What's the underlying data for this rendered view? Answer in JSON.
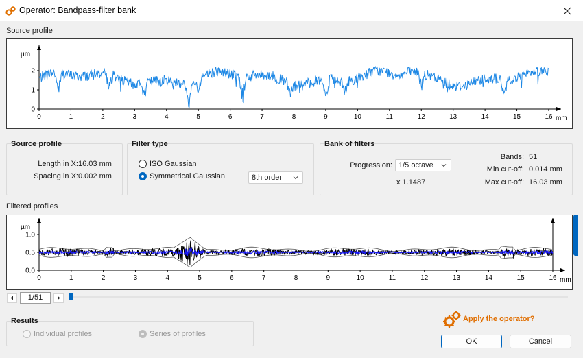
{
  "window": {
    "title": "Operator: Bandpass-filter bank",
    "title_icon": "gears-icon",
    "close_icon": "close-icon"
  },
  "source_plot": {
    "label": "Source profile",
    "y_unit": "µm",
    "x_unit": "mm",
    "x_ticks": [
      "0",
      "1",
      "2",
      "3",
      "4",
      "5",
      "6",
      "7",
      "8",
      "9",
      "10",
      "11",
      "12",
      "13",
      "14",
      "15",
      "16"
    ],
    "y_ticks": [
      "0",
      "1",
      "2"
    ],
    "series_color": "#1e88e5"
  },
  "source_info": {
    "title": "Source profile",
    "length_label": "Length in X:",
    "length_value": "16.03 mm",
    "spacing_label": "Spacing in X:",
    "spacing_value": "0.002 mm"
  },
  "filter_type": {
    "title": "Filter type",
    "options": [
      "ISO Gaussian",
      "Symmetrical Gaussian"
    ],
    "selected": "Symmetrical Gaussian",
    "order": "8th order"
  },
  "bank": {
    "title": "Bank of filters",
    "progression_label": "Progression:",
    "progression_value": "1/5 octave",
    "ratio": "x 1.1487",
    "bands_label": "Bands:",
    "bands_value": "51",
    "min_cutoff_label": "Min cut-off:",
    "min_cutoff_value": "0.014 mm",
    "max_cutoff_label": "Max cut-off:",
    "max_cutoff_value": "16.03 mm"
  },
  "filtered_plot": {
    "label": "Filtered profiles",
    "y_unit": "µm",
    "x_unit": "mm",
    "x_ticks": [
      "0",
      "1",
      "2",
      "3",
      "4",
      "5",
      "6",
      "7",
      "8",
      "9",
      "10",
      "11",
      "12",
      "13",
      "14",
      "15",
      "16"
    ],
    "y_ticks": [
      "0.0",
      "0.5",
      "1.0"
    ],
    "series_color": "#1a1aff",
    "envelope_color": "#000000"
  },
  "navigator": {
    "page": "1/51",
    "prev_icon": "triangle-left-icon",
    "next_icon": "triangle-right-icon",
    "progress_fraction": 0.0
  },
  "results": {
    "title": "Results",
    "options": [
      "Individual profiles",
      "Series of profiles"
    ],
    "selected": "Series of profiles"
  },
  "footer": {
    "apply_text": "Apply the operator?",
    "apply_icon": "gears-icon",
    "ok_label": "OK",
    "cancel_label": "Cancel",
    "accent": "#0067c0",
    "apply_color": "#e06e00"
  }
}
